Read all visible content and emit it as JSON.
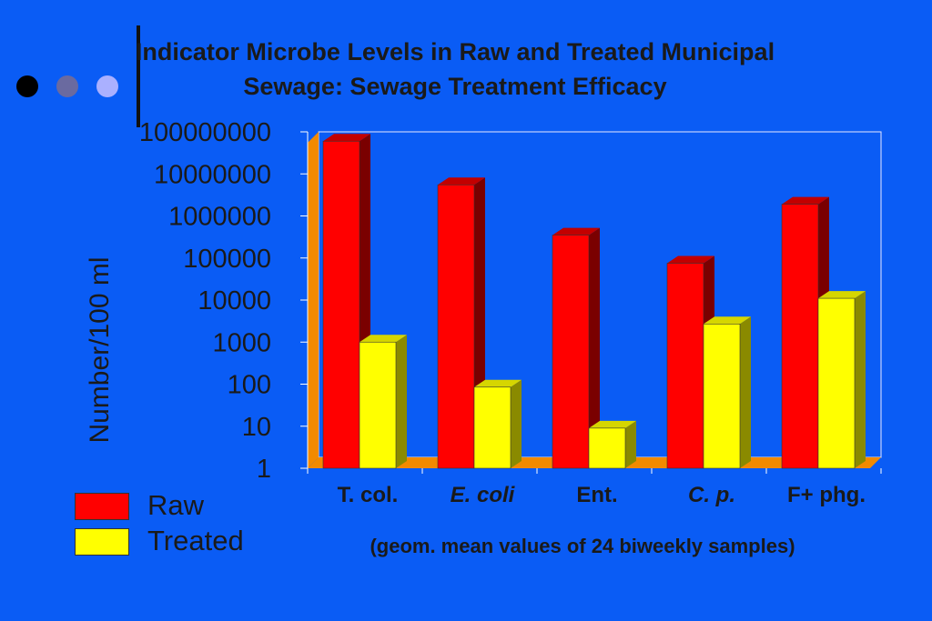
{
  "slide": {
    "title_line1": "Indicator Microbe Levels in Raw and Treated Municipal",
    "title_line2": "Sewage:  Sewage Treatment Efficacy",
    "bullets": [
      {
        "color": "#000000"
      },
      {
        "color": "#6a6aa0"
      },
      {
        "color": "#aab0ff"
      }
    ],
    "note": "(geom. mean values of 24 biweekly samples)"
  },
  "chart_data": {
    "type": "bar",
    "title": "Indicator Microbe Levels in Raw and Treated Municipal Sewage:  Sewage Treatment Efficacy",
    "ylabel": "Number/100 ml",
    "xlabel": "",
    "y_scale": "log",
    "ylim": [
      1,
      100000000
    ],
    "y_ticks": [
      "1",
      "10",
      "100",
      "1000",
      "10000",
      "100000",
      "1000000",
      "10000000",
      "100000000"
    ],
    "categories": [
      "T. col.",
      "E. coli",
      "Ent.",
      "C. p.",
      "F+ phg."
    ],
    "category_italic": [
      false,
      true,
      false,
      true,
      false
    ],
    "series": [
      {
        "name": "Raw",
        "color": "#ff0000",
        "values": [
          60000000,
          5500000,
          350000,
          75000,
          1900000
        ]
      },
      {
        "name": "Treated",
        "color": "#ffff00",
        "values": [
          1000,
          85,
          9,
          2700,
          11000
        ]
      }
    ],
    "legend_position": "bottom-left",
    "grid": false
  }
}
